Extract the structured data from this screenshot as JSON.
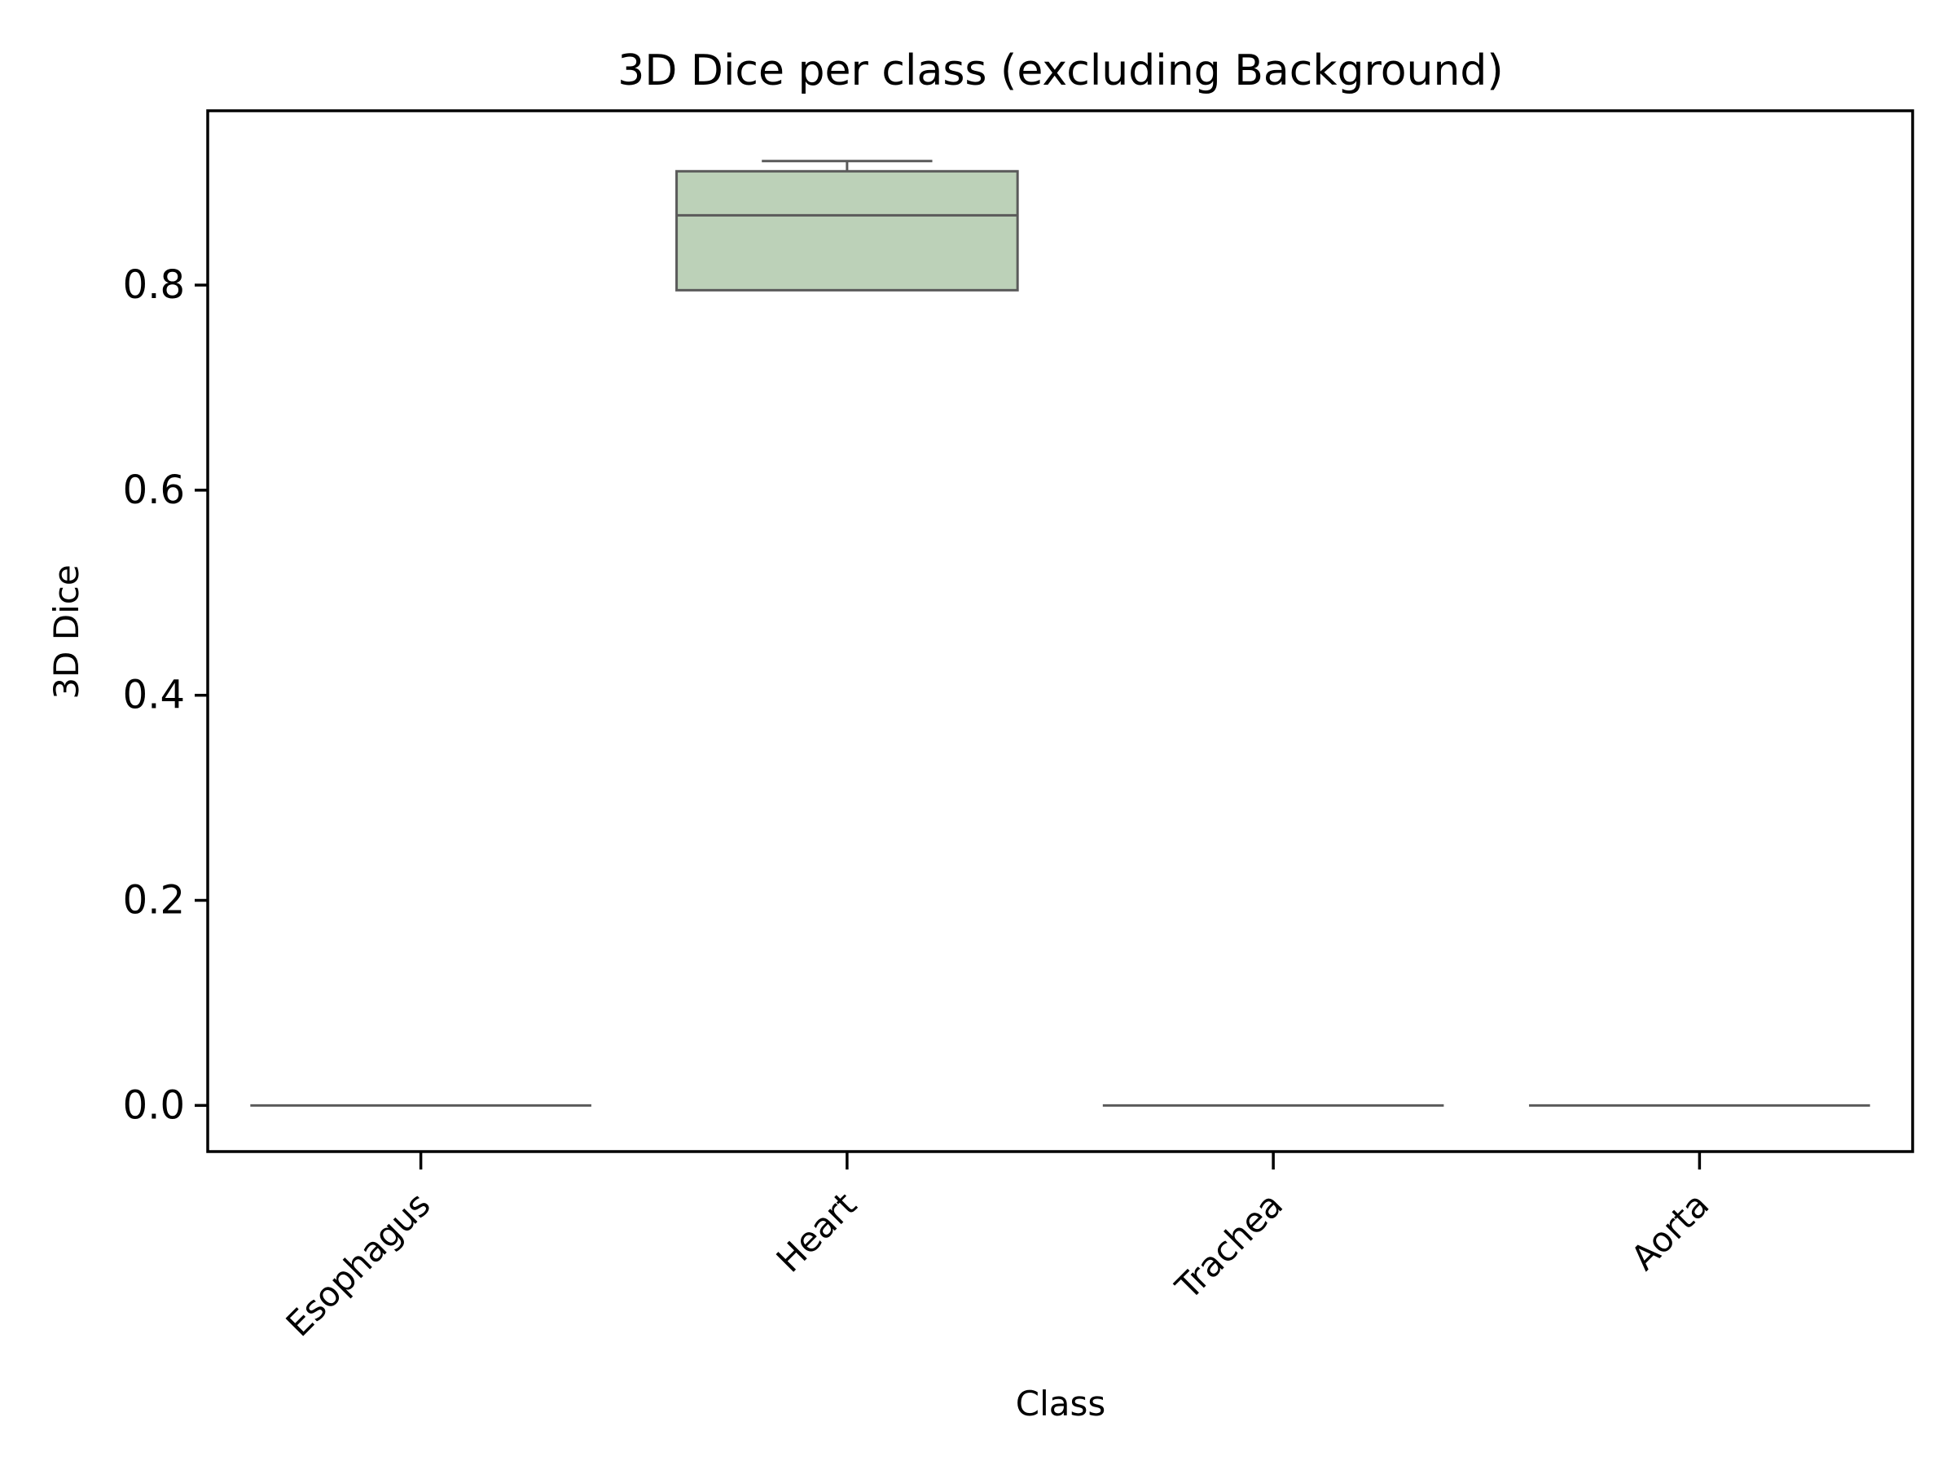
{
  "chart_data": {
    "type": "box",
    "title": "3D Dice per class (excluding Background)",
    "xlabel": "Class",
    "ylabel": "3D Dice",
    "categories": [
      "Esophagus",
      "Heart",
      "Trachea",
      "Aorta"
    ],
    "ylim": [
      -0.045,
      0.97
    ],
    "yticks": [
      0.0,
      0.2,
      0.4,
      0.6,
      0.8
    ],
    "ytick_labels": [
      "0.0",
      "0.2",
      "0.4",
      "0.6",
      "0.8"
    ],
    "grid": false,
    "legend": "none",
    "boxes": [
      {
        "category": "Esophagus",
        "whisker_low": 0.0,
        "q1": 0.0,
        "median": 0.0,
        "q3": 0.0,
        "whisker_high": 0.0
      },
      {
        "category": "Heart",
        "whisker_low": 0.795,
        "q1": 0.795,
        "median": 0.868,
        "q3": 0.911,
        "whisker_high": 0.921
      },
      {
        "category": "Trachea",
        "whisker_low": 0.0,
        "q1": 0.0,
        "median": 0.0,
        "q3": 0.0,
        "whisker_high": 0.0
      },
      {
        "category": "Aorta",
        "whisker_low": 0.0,
        "q1": 0.0,
        "median": 0.0,
        "q3": 0.0,
        "whisker_high": 0.0
      }
    ],
    "colors": {
      "box_fill": "#bcd1b8",
      "box_line": "#5a5a5a",
      "axis": "#000000"
    }
  }
}
